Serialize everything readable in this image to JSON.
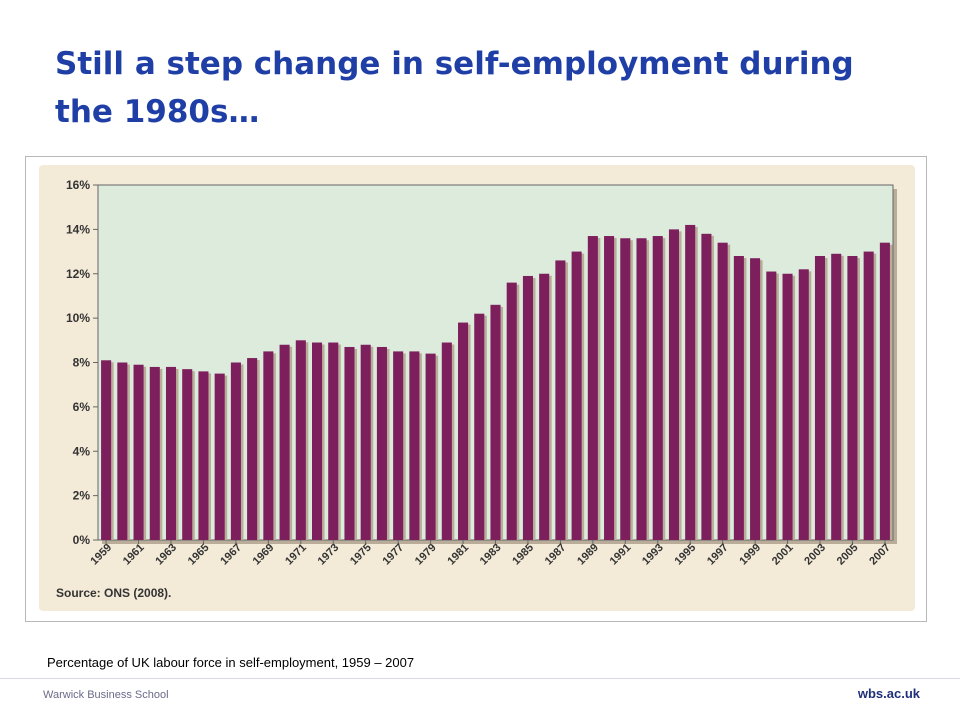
{
  "slide": {
    "title": "Still a step change in self-employment during the 1980s…",
    "caption": "Percentage of UK labour force in self-employment, 1959 – 2007",
    "footer_left": "Warwick Business School",
    "footer_right": "wbs.ac.uk"
  },
  "chart_data": {
    "type": "bar",
    "title": "",
    "xlabel": "",
    "ylabel": "",
    "ylim": [
      0,
      16
    ],
    "y_ticks": [
      "0%",
      "2%",
      "4%",
      "6%",
      "8%",
      "10%",
      "12%",
      "14%",
      "16%"
    ],
    "y_tick_values": [
      0,
      2,
      4,
      6,
      8,
      10,
      12,
      14,
      16
    ],
    "x_tick_labels": [
      "1959",
      "1961",
      "1963",
      "1965",
      "1967",
      "1969",
      "1971",
      "1973",
      "1975",
      "1977",
      "1979",
      "1981",
      "1983",
      "1985",
      "1987",
      "1989",
      "1991",
      "1993",
      "1995",
      "1997",
      "1999",
      "2001",
      "2003",
      "2005",
      "2007"
    ],
    "categories": [
      "1959",
      "1960",
      "1961",
      "1962",
      "1963",
      "1964",
      "1965",
      "1966",
      "1967",
      "1968",
      "1969",
      "1970",
      "1971",
      "1972",
      "1973",
      "1974",
      "1975",
      "1976",
      "1977",
      "1978",
      "1979",
      "1980",
      "1981",
      "1982",
      "1983",
      "1984",
      "1985",
      "1986",
      "1987",
      "1988",
      "1989",
      "1990",
      "1991",
      "1992",
      "1993",
      "1994",
      "1995",
      "1996",
      "1997",
      "1998",
      "1999",
      "2000",
      "2001",
      "2002",
      "2003",
      "2004",
      "2005",
      "2006",
      "2007"
    ],
    "values": [
      8.1,
      8.0,
      7.9,
      7.8,
      7.8,
      7.7,
      7.6,
      7.5,
      8.0,
      8.2,
      8.5,
      8.8,
      9.0,
      8.9,
      8.9,
      8.7,
      8.8,
      8.7,
      8.5,
      8.5,
      8.4,
      8.9,
      9.8,
      10.2,
      10.6,
      11.6,
      11.9,
      12.0,
      12.6,
      13.0,
      13.7,
      13.7,
      13.6,
      13.6,
      13.7,
      14.0,
      14.2,
      13.8,
      13.4,
      12.8,
      12.7,
      12.1,
      12.0,
      12.2,
      12.8,
      12.9,
      12.8,
      13.0,
      13.4
    ],
    "source": "Source: ONS (2008).",
    "grid": false,
    "legend": "none",
    "colors": {
      "bar": "#7d1f5c",
      "bar_shadow": "#b9ad9a",
      "plot_bg": "#dcebdc",
      "outer_bg": "#f3ead8",
      "axis": "#666666"
    }
  }
}
